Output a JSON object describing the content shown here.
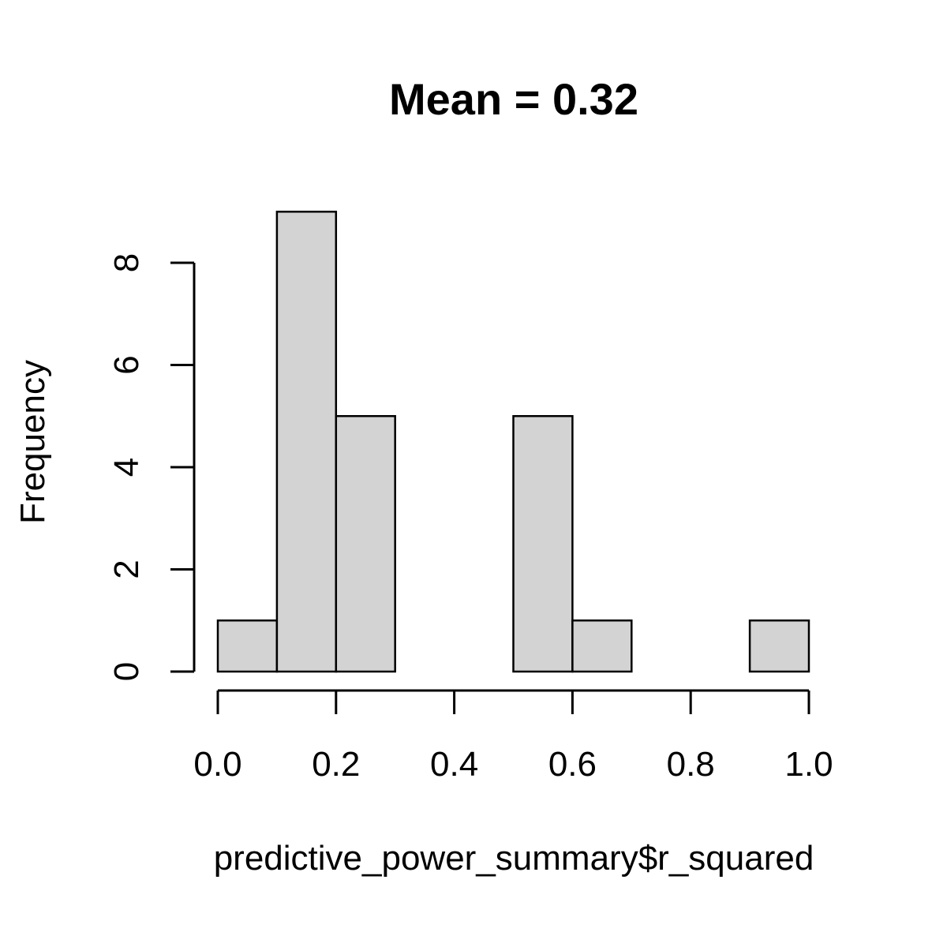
{
  "chart_data": {
    "type": "bar",
    "title": "Mean = 0.32",
    "xlabel": "predictive_power_summary$r_squared",
    "ylabel": "Frequency",
    "bins": [
      {
        "x0": 0.0,
        "x1": 0.1,
        "count": 1
      },
      {
        "x0": 0.1,
        "x1": 0.2,
        "count": 9
      },
      {
        "x0": 0.2,
        "x1": 0.3,
        "count": 5
      },
      {
        "x0": 0.3,
        "x1": 0.4,
        "count": 0
      },
      {
        "x0": 0.4,
        "x1": 0.5,
        "count": 0
      },
      {
        "x0": 0.5,
        "x1": 0.6,
        "count": 5
      },
      {
        "x0": 0.6,
        "x1": 0.7,
        "count": 1
      },
      {
        "x0": 0.7,
        "x1": 0.8,
        "count": 0
      },
      {
        "x0": 0.8,
        "x1": 0.9,
        "count": 0
      },
      {
        "x0": 0.9,
        "x1": 1.0,
        "count": 1
      }
    ],
    "xlim": [
      0.0,
      1.0
    ],
    "ylim": [
      0,
      9
    ],
    "x_ticks": [
      "0.0",
      "0.2",
      "0.4",
      "0.6",
      "0.8",
      "1.0"
    ],
    "y_ticks": [
      "0",
      "2",
      "4",
      "6",
      "8"
    ],
    "grid": false,
    "bar_fill": "#d3d3d3",
    "bar_stroke": "#000000"
  }
}
